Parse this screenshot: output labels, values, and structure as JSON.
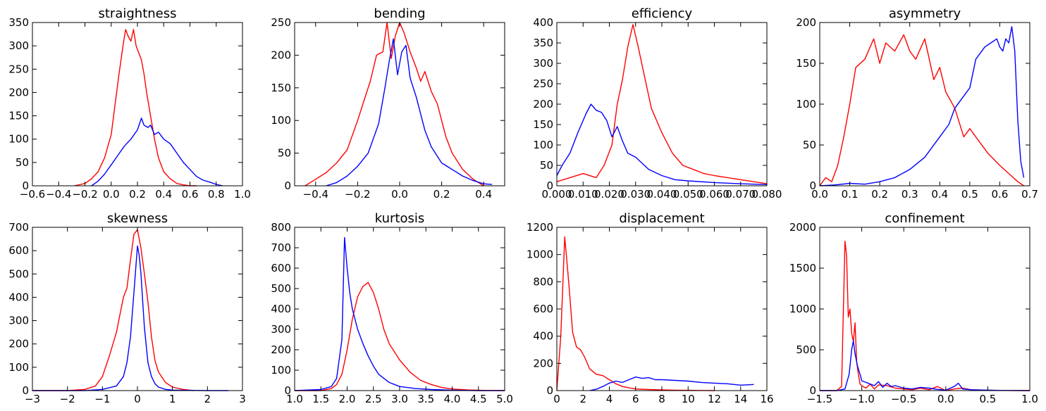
{
  "chart_data": [
    {
      "type": "line",
      "title": "straightness",
      "xlim": [
        -0.6,
        1.0
      ],
      "ylim": [
        0,
        350
      ],
      "xticks": [
        "−0.6",
        "−0.4",
        "−0.2",
        "0.0",
        "0.2",
        "0.4",
        "0.6",
        "0.8",
        "1.0"
      ],
      "yticks": [
        "0",
        "50",
        "100",
        "150",
        "200",
        "250",
        "300",
        "350"
      ],
      "series": [
        {
          "color": "#ff0000",
          "x": [
            -0.28,
            -0.2,
            -0.15,
            -0.1,
            -0.05,
            0.0,
            0.03,
            0.06,
            0.09,
            0.11,
            0.13,
            0.15,
            0.17,
            0.19,
            0.21,
            0.23,
            0.25,
            0.27,
            0.3,
            0.33,
            0.36,
            0.4,
            0.45,
            0.5,
            0.55,
            0.6,
            0.65
          ],
          "y": [
            0,
            5,
            15,
            30,
            60,
            110,
            175,
            240,
            300,
            335,
            320,
            310,
            335,
            300,
            285,
            270,
            240,
            200,
            150,
            100,
            60,
            30,
            15,
            5,
            2,
            0,
            0
          ]
        },
        {
          "color": "#0000ff",
          "x": [
            -0.15,
            -0.1,
            -0.05,
            0.0,
            0.05,
            0.1,
            0.15,
            0.2,
            0.23,
            0.25,
            0.28,
            0.3,
            0.33,
            0.36,
            0.4,
            0.45,
            0.5,
            0.55,
            0.6,
            0.65,
            0.7,
            0.75,
            0.8,
            0.85
          ],
          "y": [
            0,
            10,
            25,
            45,
            65,
            85,
            100,
            120,
            145,
            130,
            125,
            130,
            110,
            115,
            100,
            90,
            70,
            50,
            35,
            20,
            12,
            8,
            3,
            0
          ]
        }
      ]
    },
    {
      "type": "line",
      "title": "bending",
      "xlim": [
        -0.5,
        0.5
      ],
      "ylim": [
        0,
        250
      ],
      "xticks": [
        "−0.4",
        "−0.2",
        "0.0",
        "0.2",
        "0.4"
      ],
      "yticks": [
        "0",
        "50",
        "100",
        "150",
        "200",
        "250"
      ],
      "series": [
        {
          "color": "#ff0000",
          "x": [
            -0.45,
            -0.4,
            -0.35,
            -0.3,
            -0.25,
            -0.2,
            -0.17,
            -0.14,
            -0.11,
            -0.08,
            -0.06,
            -0.04,
            -0.02,
            0.0,
            0.02,
            0.05,
            0.08,
            0.1,
            0.12,
            0.15,
            0.18,
            0.2,
            0.22,
            0.25,
            0.3,
            0.35,
            0.4
          ],
          "y": [
            0,
            10,
            20,
            35,
            55,
            100,
            130,
            160,
            200,
            205,
            250,
            195,
            230,
            250,
            235,
            205,
            180,
            160,
            175,
            145,
            125,
            100,
            75,
            50,
            25,
            10,
            0
          ]
        },
        {
          "color": "#0000ff",
          "x": [
            -0.35,
            -0.3,
            -0.25,
            -0.2,
            -0.15,
            -0.1,
            -0.07,
            -0.05,
            -0.03,
            -0.01,
            0.01,
            0.03,
            0.05,
            0.08,
            0.1,
            0.12,
            0.15,
            0.18,
            0.2,
            0.25,
            0.3,
            0.35,
            0.4,
            0.44
          ],
          "y": [
            0,
            5,
            15,
            30,
            50,
            95,
            150,
            190,
            225,
            170,
            205,
            215,
            165,
            135,
            110,
            85,
            60,
            45,
            35,
            25,
            15,
            8,
            3,
            2
          ]
        }
      ]
    },
    {
      "type": "line",
      "title": "efficiency",
      "xlim": [
        0.0,
        0.08
      ],
      "ylim": [
        0,
        400
      ],
      "xticks": [
        "0.000",
        "0.010",
        "0.020",
        "0.030",
        "0.040",
        "0.050",
        "0.060",
        "0.070",
        "0.080"
      ],
      "yticks": [
        "0",
        "50",
        "100",
        "150",
        "200",
        "250",
        "300",
        "350",
        "400"
      ],
      "series": [
        {
          "color": "#ff0000",
          "x": [
            0.0,
            0.005,
            0.01,
            0.015,
            0.018,
            0.021,
            0.023,
            0.025,
            0.027,
            0.029,
            0.031,
            0.033,
            0.036,
            0.04,
            0.044,
            0.048,
            0.052,
            0.056,
            0.06,
            0.065,
            0.07,
            0.075,
            0.08
          ],
          "y": [
            10,
            20,
            30,
            20,
            50,
            100,
            200,
            260,
            340,
            395,
            340,
            280,
            190,
            130,
            80,
            50,
            40,
            30,
            25,
            20,
            15,
            10,
            5
          ]
        },
        {
          "color": "#0000ff",
          "x": [
            0.0,
            0.002,
            0.005,
            0.008,
            0.011,
            0.013,
            0.015,
            0.017,
            0.019,
            0.021,
            0.023,
            0.025,
            0.027,
            0.03,
            0.035,
            0.04,
            0.045,
            0.05,
            0.06,
            0.07,
            0.08
          ],
          "y": [
            25,
            50,
            80,
            130,
            175,
            200,
            185,
            180,
            160,
            120,
            145,
            110,
            80,
            70,
            40,
            25,
            15,
            12,
            8,
            5,
            3
          ]
        }
      ]
    },
    {
      "type": "line",
      "title": "asymmetry",
      "xlim": [
        0.0,
        0.7
      ],
      "ylim": [
        0,
        200
      ],
      "xticks": [
        "0.0",
        "0.1",
        "0.2",
        "0.3",
        "0.4",
        "0.5",
        "0.6",
        "0.7"
      ],
      "yticks": [
        "0",
        "50",
        "100",
        "150",
        "200"
      ],
      "series": [
        {
          "color": "#ff0000",
          "x": [
            0.0,
            0.02,
            0.04,
            0.06,
            0.08,
            0.1,
            0.12,
            0.15,
            0.18,
            0.2,
            0.22,
            0.25,
            0.28,
            0.3,
            0.32,
            0.35,
            0.38,
            0.4,
            0.42,
            0.45,
            0.48,
            0.5,
            0.53,
            0.56,
            0.6,
            0.63,
            0.66,
            0.68
          ],
          "y": [
            0,
            10,
            5,
            25,
            60,
            100,
            145,
            155,
            180,
            150,
            175,
            165,
            185,
            165,
            155,
            180,
            130,
            145,
            115,
            95,
            60,
            70,
            55,
            40,
            25,
            15,
            5,
            0
          ]
        },
        {
          "color": "#0000ff",
          "x": [
            0.0,
            0.05,
            0.1,
            0.15,
            0.2,
            0.25,
            0.3,
            0.35,
            0.4,
            0.43,
            0.45,
            0.47,
            0.5,
            0.52,
            0.55,
            0.57,
            0.59,
            0.6,
            0.61,
            0.62,
            0.63,
            0.64,
            0.65,
            0.66,
            0.67,
            0.68
          ],
          "y": [
            0,
            1,
            3,
            2,
            5,
            10,
            20,
            35,
            60,
            75,
            95,
            105,
            120,
            155,
            170,
            175,
            180,
            170,
            165,
            180,
            175,
            195,
            165,
            80,
            30,
            10
          ]
        }
      ]
    },
    {
      "type": "line",
      "title": "skewness",
      "xlim": [
        -3,
        3
      ],
      "ylim": [
        0,
        700
      ],
      "xticks": [
        "−3",
        "−2",
        "−1",
        "0",
        "1",
        "2",
        "3"
      ],
      "yticks": [
        "0",
        "100",
        "200",
        "300",
        "400",
        "500",
        "600",
        "700"
      ],
      "series": [
        {
          "color": "#ff0000",
          "x": [
            -3.0,
            -2.0,
            -1.5,
            -1.2,
            -1.0,
            -0.8,
            -0.6,
            -0.4,
            -0.3,
            -0.2,
            -0.1,
            0.0,
            0.1,
            0.2,
            0.3,
            0.4,
            0.5,
            0.6,
            0.8,
            1.0,
            1.3,
            1.6
          ],
          "y": [
            0,
            0,
            5,
            20,
            60,
            150,
            250,
            400,
            440,
            560,
            670,
            690,
            610,
            500,
            380,
            230,
            130,
            80,
            35,
            15,
            5,
            0
          ]
        },
        {
          "color": "#0000ff",
          "x": [
            -3.0,
            -2.0,
            -1.5,
            -1.0,
            -0.6,
            -0.4,
            -0.3,
            -0.2,
            -0.1,
            0.0,
            0.05,
            0.1,
            0.15,
            0.2,
            0.3,
            0.4,
            0.5,
            0.6,
            0.8,
            1.0,
            2.0,
            2.6
          ],
          "y": [
            0,
            0,
            0,
            5,
            20,
            60,
            120,
            230,
            420,
            620,
            580,
            500,
            380,
            270,
            120,
            60,
            30,
            15,
            5,
            2,
            0,
            0
          ]
        }
      ]
    },
    {
      "type": "line",
      "title": "kurtosis",
      "xlim": [
        1.0,
        5.0
      ],
      "ylim": [
        0,
        800
      ],
      "xticks": [
        "1.0",
        "1.5",
        "2.0",
        "2.5",
        "3.0",
        "3.5",
        "4.0",
        "4.5",
        "5.0"
      ],
      "yticks": [
        "0",
        "100",
        "200",
        "300",
        "400",
        "500",
        "600",
        "700",
        "800"
      ],
      "series": [
        {
          "color": "#ff0000",
          "x": [
            1.0,
            1.5,
            1.7,
            1.8,
            1.9,
            2.0,
            2.1,
            2.2,
            2.3,
            2.4,
            2.5,
            2.6,
            2.7,
            2.8,
            3.0,
            3.2,
            3.4,
            3.6,
            3.8,
            4.0,
            4.3,
            4.6,
            5.0
          ],
          "y": [
            0,
            0,
            10,
            30,
            80,
            200,
            350,
            460,
            510,
            530,
            480,
            400,
            300,
            230,
            150,
            90,
            50,
            30,
            15,
            8,
            3,
            1,
            0
          ]
        },
        {
          "color": "#0000ff",
          "x": [
            1.0,
            1.5,
            1.7,
            1.8,
            1.9,
            1.95,
            2.0,
            2.05,
            2.1,
            2.2,
            2.3,
            2.4,
            2.5,
            2.6,
            2.8,
            3.0,
            3.3,
            3.6,
            4.0,
            4.5,
            5.0
          ],
          "y": [
            0,
            5,
            20,
            60,
            250,
            750,
            600,
            480,
            400,
            300,
            230,
            170,
            120,
            80,
            40,
            20,
            10,
            5,
            2,
            0,
            0
          ]
        }
      ]
    },
    {
      "type": "line",
      "title": "displacement",
      "xlim": [
        0,
        16
      ],
      "ylim": [
        0,
        1200
      ],
      "xticks": [
        "0",
        "2",
        "4",
        "6",
        "8",
        "10",
        "12",
        "14",
        "16"
      ],
      "yticks": [
        "0",
        "200",
        "400",
        "600",
        "800",
        "1000",
        "1200"
      ],
      "series": [
        {
          "color": "#ff0000",
          "x": [
            0.0,
            0.3,
            0.6,
            0.9,
            1.2,
            1.5,
            1.8,
            2.1,
            2.5,
            3.0,
            3.5,
            4.0,
            4.5,
            5.0,
            5.5,
            6.0,
            7.0,
            8.0,
            9.0,
            10.0,
            11.0,
            12.0
          ],
          "y": [
            0,
            400,
            1130,
            800,
            430,
            320,
            300,
            250,
            160,
            120,
            110,
            80,
            50,
            30,
            20,
            12,
            8,
            5,
            3,
            2,
            1,
            0
          ]
        },
        {
          "color": "#0000ff",
          "x": [
            2.5,
            3.0,
            3.5,
            4.0,
            4.5,
            5.0,
            5.5,
            6.0,
            6.5,
            7.0,
            7.5,
            8.0,
            9.0,
            10.0,
            11.0,
            12.0,
            13.0,
            14.0,
            15.0
          ],
          "y": [
            0,
            10,
            30,
            55,
            70,
            60,
            80,
            100,
            90,
            95,
            80,
            80,
            75,
            70,
            60,
            55,
            50,
            40,
            45
          ]
        }
      ]
    },
    {
      "type": "line",
      "title": "confinement",
      "xlim": [
        -1.5,
        1.0
      ],
      "ylim": [
        0,
        2000
      ],
      "xticks": [
        "−1.5",
        "−1.0",
        "−0.5",
        "0.0",
        "0.5",
        "1.0"
      ],
      "yticks": [
        "0",
        "500",
        "1000",
        "1500",
        "2000"
      ],
      "series": [
        {
          "color": "#ff0000",
          "x": [
            -1.5,
            -1.3,
            -1.24,
            -1.2,
            -1.18,
            -1.16,
            -1.14,
            -1.12,
            -1.1,
            -1.08,
            -1.06,
            -1.04,
            -1.02,
            -1.0,
            -0.95,
            -0.9,
            -0.85,
            -0.8,
            -0.7,
            -0.6,
            -0.5,
            -0.4,
            -0.3,
            -0.2,
            -0.1,
            0.0,
            0.1,
            0.2,
            0.3,
            0.5,
            0.7,
            1.0
          ],
          "y": [
            0,
            0,
            50,
            1830,
            1650,
            900,
            1000,
            700,
            600,
            830,
            350,
            200,
            80,
            60,
            30,
            80,
            20,
            70,
            60,
            30,
            20,
            10,
            30,
            10,
            50,
            0,
            20,
            30,
            10,
            5,
            2,
            0
          ]
        },
        {
          "color": "#0000ff",
          "x": [
            -1.5,
            -1.3,
            -1.2,
            -1.15,
            -1.12,
            -1.1,
            -1.08,
            -1.05,
            -1.02,
            -1.0,
            -0.95,
            -0.9,
            -0.85,
            -0.8,
            -0.75,
            -0.7,
            -0.65,
            -0.6,
            -0.5,
            -0.4,
            -0.3,
            -0.2,
            -0.1,
            0.0,
            0.1,
            0.15,
            0.2,
            0.3,
            0.5,
            0.7,
            1.0
          ],
          "y": [
            0,
            0,
            20,
            200,
            500,
            610,
            450,
            300,
            200,
            120,
            100,
            80,
            60,
            110,
            40,
            90,
            50,
            60,
            30,
            20,
            40,
            30,
            15,
            5,
            50,
            90,
            20,
            10,
            5,
            2,
            0
          ]
        }
      ]
    }
  ]
}
